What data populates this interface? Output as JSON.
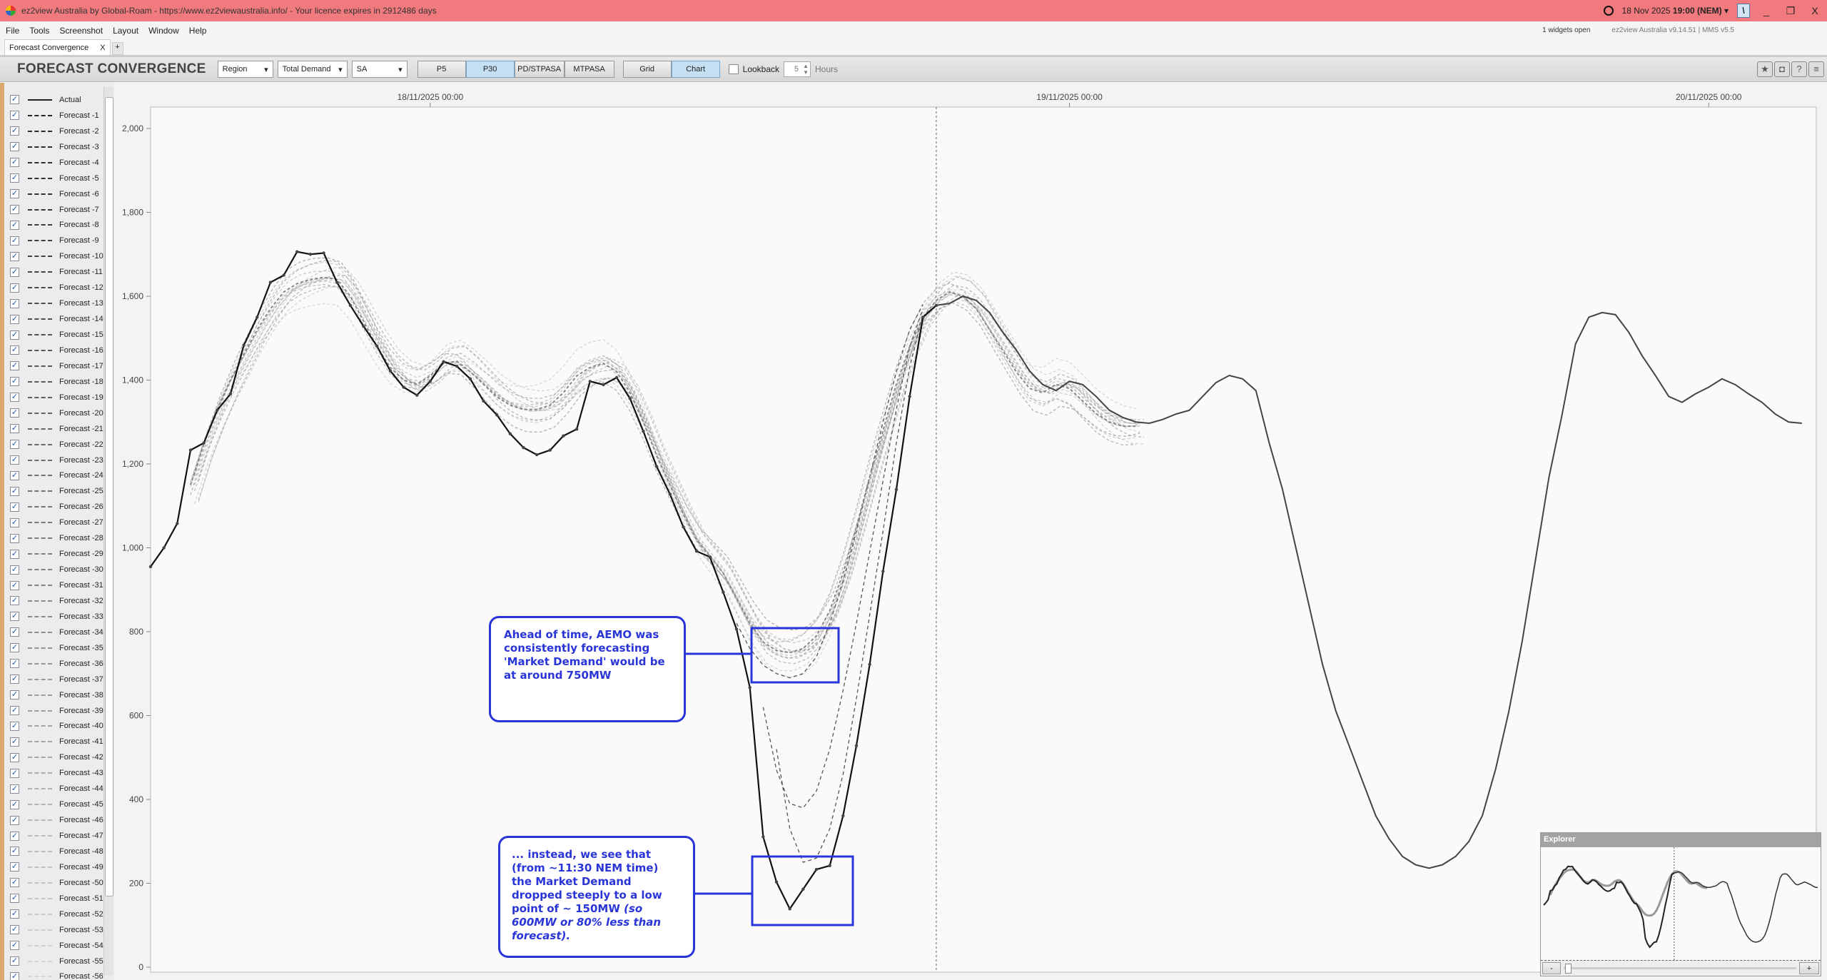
{
  "window": {
    "title": "ez2view Australia by Global-Roam - https://www.ez2viewaustralia.info/ - Your licence expires in 2912486 days",
    "datetime_date": "18 Nov 2025",
    "datetime_time": "19:00",
    "datetime_zone": "(NEM)",
    "minimize": "_",
    "restore": "❐",
    "close": "X"
  },
  "menu": {
    "items": [
      "File",
      "Tools",
      "Screenshot",
      "Layout",
      "Window",
      "Help"
    ],
    "widgets_open": "1 widgets open",
    "version": "ez2view Australia v9.14.51 | MMS v5.5"
  },
  "tabs": [
    {
      "label": "Forecast Convergence",
      "close": "X"
    }
  ],
  "tab_add": "+",
  "toolbar": {
    "title": "FORECAST CONVERGENCE",
    "region_mode": "Region",
    "measure": "Total Demand",
    "region": "SA",
    "run_buttons": [
      {
        "label": "P5",
        "active": false
      },
      {
        "label": "P30",
        "active": true
      },
      {
        "label": "PD/STPASA",
        "active": false
      },
      {
        "label": "MTPASA",
        "active": false
      }
    ],
    "view_buttons": [
      {
        "label": "Grid",
        "active": false
      },
      {
        "label": "Chart",
        "active": true
      }
    ],
    "lookback_label": "Lookback",
    "lookback_checked": false,
    "lookback_value": "5",
    "lookback_unit": "Hours",
    "icons": [
      "star-icon",
      "camera-icon",
      "help-icon",
      "comment-icon"
    ]
  },
  "legend": {
    "items": [
      "Actual",
      "Forecast -1",
      "Forecast -2",
      "Forecast -3",
      "Forecast -4",
      "Forecast -5",
      "Forecast -6",
      "Forecast -7",
      "Forecast -8",
      "Forecast -9",
      "Forecast -10",
      "Forecast -11",
      "Forecast -12",
      "Forecast -13",
      "Forecast -14",
      "Forecast -15",
      "Forecast -16",
      "Forecast -17",
      "Forecast -18",
      "Forecast -19",
      "Forecast -20",
      "Forecast -21",
      "Forecast -22",
      "Forecast -23",
      "Forecast -24",
      "Forecast -25",
      "Forecast -26",
      "Forecast -27",
      "Forecast -28",
      "Forecast -29",
      "Forecast -30",
      "Forecast -31",
      "Forecast -32",
      "Forecast -33",
      "Forecast -34",
      "Forecast -35",
      "Forecast -36",
      "Forecast -37",
      "Forecast -38",
      "Forecast -39",
      "Forecast -40",
      "Forecast -41",
      "Forecast -42",
      "Forecast -43",
      "Forecast -44",
      "Forecast -45",
      "Forecast -46",
      "Forecast -47",
      "Forecast -48",
      "Forecast -49",
      "Forecast -50",
      "Forecast -51",
      "Forecast -52",
      "Forecast -53",
      "Forecast -54",
      "Forecast -55",
      "Forecast -56"
    ],
    "all_checked": true
  },
  "chart_data": {
    "type": "line",
    "x_start": "17/11/2025 13:30",
    "x_interval_minutes": 30,
    "x_ticks": [
      "18/11/2025 00:00",
      "19/11/2025 00:00",
      "20/11/2025 00:00"
    ],
    "now_marker": "18/11/2025 19:00",
    "y_ticks": [
      0,
      200,
      400,
      600,
      800,
      1000,
      1200,
      1400,
      1600,
      1800,
      2000
    ],
    "y_tick_labels": [
      "0",
      "200",
      "400",
      "600",
      "800",
      "1,000",
      "1,200",
      "1,400",
      "1,600",
      "1,800",
      "2,000"
    ],
    "ylim": [
      0,
      2050
    ],
    "grid": false,
    "series": [
      {
        "name": "Actual",
        "values": [
          955,
          1000,
          1058,
          1233,
          1250,
          1328,
          1367,
          1483,
          1550,
          1633,
          1650,
          1706,
          1700,
          1703,
          1633,
          1578,
          1528,
          1481,
          1422,
          1383,
          1364,
          1397,
          1444,
          1433,
          1403,
          1350,
          1317,
          1272,
          1239,
          1222,
          1233,
          1267,
          1283,
          1397,
          1389,
          1406,
          1356,
          1278,
          1194,
          1128,
          1050,
          992,
          978,
          894,
          806,
          667,
          311,
          203,
          139,
          186,
          233,
          242,
          361,
          528,
          722,
          944,
          1139,
          1361,
          1550,
          1578
        ]
      },
      {
        "name": "Forecast -1",
        "offset": 59,
        "values": [
          1578,
          1583,
          1600,
          1590,
          1561,
          1514,
          1472,
          1422,
          1389,
          1375,
          1397,
          1389,
          1361,
          1328,
          1311,
          1300,
          1297,
          1306,
          1319,
          1328,
          1361,
          1394,
          1411,
          1403,
          1375,
          1250,
          1139,
          1000,
          861,
          722,
          611,
          528,
          444,
          361,
          306,
          264,
          244,
          236,
          244,
          264,
          300,
          361,
          472,
          611,
          778,
          972,
          1167,
          1319,
          1486,
          1550,
          1561,
          1556,
          1514,
          1458,
          1411,
          1361,
          1347,
          1367,
          1383,
          1403,
          1389,
          1367,
          1347,
          1319,
          1300,
          1297
        ]
      },
      {
        "name": "Forecast -20",
        "offset": 3,
        "values": [
          1150,
          1250,
          1330,
          1400,
          1460,
          1520,
          1570,
          1610,
          1630,
          1640,
          1645,
          1640,
          1600,
          1540,
          1480,
          1430,
          1400,
          1390,
          1410,
          1440,
          1445,
          1420,
          1390,
          1360,
          1340,
          1330,
          1330,
          1340,
          1370,
          1410,
          1430,
          1440,
          1420,
          1370,
          1300,
          1220,
          1150,
          1080,
          1020,
          980,
          940,
          880,
          820,
          775,
          755,
          750,
          760,
          790,
          850,
          940,
          1050,
          1170,
          1280,
          1390,
          1480,
          1550,
          1590,
          1610,
          1600,
          1570,
          1520,
          1470,
          1420,
          1380,
          1370,
          1390,
          1380,
          1350,
          1320,
          1300,
          1290,
          1290
        ]
      },
      {
        "name": "Forecast -5",
        "offset": 44,
        "values": [
          820,
          760,
          720,
          700,
          690,
          700,
          740,
          820,
          920,
          1040,
          1170,
          1300,
          1420,
          1520,
          1580
        ]
      },
      {
        "name": "Forecast -3",
        "offset": 46,
        "values": [
          620,
          470,
          390,
          380,
          420,
          520,
          660,
          820,
          990,
          1160,
          1330,
          1480,
          1570
        ]
      },
      {
        "name": "Forecast -2",
        "offset": 47,
        "values": [
          520,
          330,
          250,
          260,
          330,
          460,
          640,
          840,
          1040,
          1250,
          1430,
          1560
        ]
      }
    ]
  },
  "annotations": [
    {
      "text": "Ahead of time, AEMO was consistently forecasting 'Market Demand' would be at around 750MW"
    },
    {
      "text": "... instead, we see that (from ~11:30 NEM time) the Market Demand dropped steeply to a low point of ~ 150MW",
      "italic": " (so 600MW or 80% less than forecast)."
    }
  ],
  "explorer": {
    "title": "Explorer",
    "minus": "-",
    "plus": "+"
  },
  "colors": {
    "titlebar": "#f07a7d",
    "annotation": "#2a35d8",
    "active_button": "#c5e0f3"
  }
}
